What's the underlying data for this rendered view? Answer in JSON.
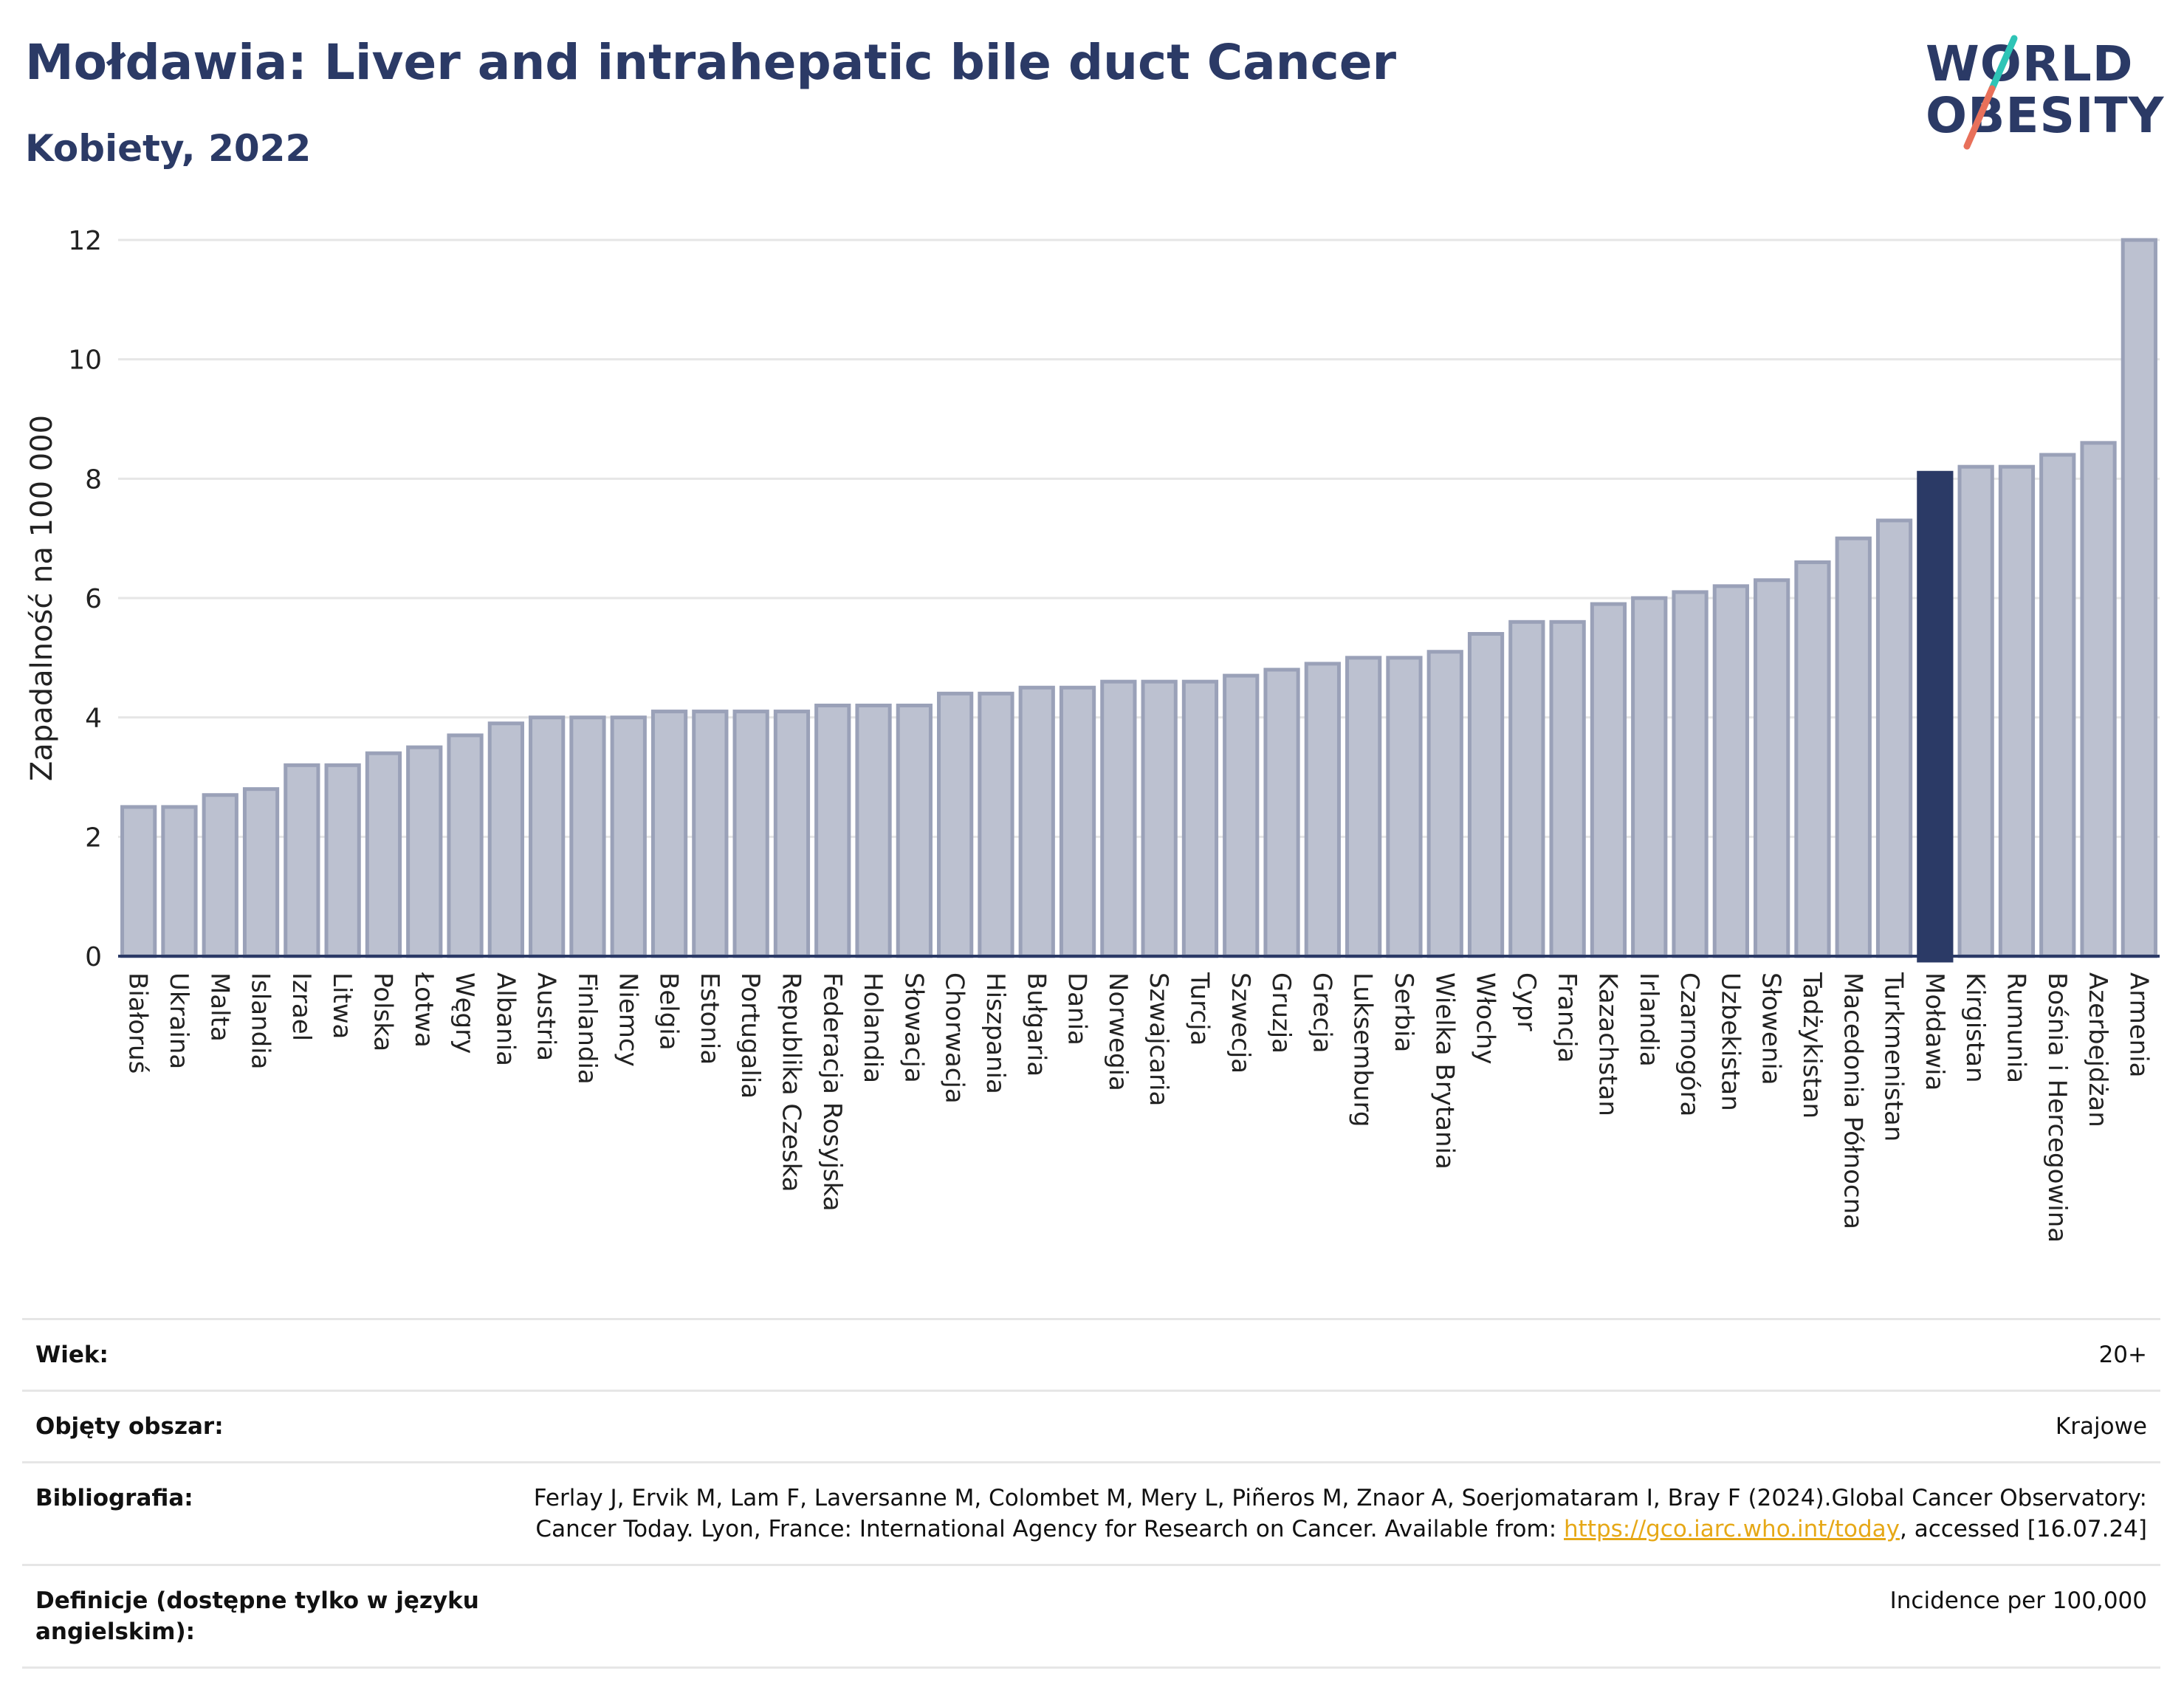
{
  "header": {
    "title": "Mołdawia: Liver and intrahepatic bile duct Cancer",
    "subtitle": "Kobiety, 2022"
  },
  "logo": {
    "line1": "WORLD",
    "line2": "OBESITY",
    "slash_colors": [
      "#2ec4b6",
      "#e8705a"
    ]
  },
  "colors": {
    "bar": "#bcc1d0",
    "bar_border": "#9aa1b8",
    "highlight": "#2b3a66",
    "title": "#2b3a66",
    "grid": "#e6e6e6",
    "link": "#e6a817"
  },
  "chart_data": {
    "type": "bar",
    "title": "Mołdawia: Liver and intrahepatic bile duct Cancer",
    "ylabel": "Zapadalność na 100 000",
    "ylim": [
      0,
      12
    ],
    "yticks": [
      0,
      2,
      4,
      6,
      8,
      10,
      12
    ],
    "highlight": "Mołdawia",
    "grid": true,
    "categories": [
      "Białoruś",
      "Ukraina",
      "Malta",
      "Islandia",
      "Izrael",
      "Litwa",
      "Polska",
      "Łotwa",
      "Węgry",
      "Albania",
      "Austria",
      "Finlandia",
      "Niemcy",
      "Belgia",
      "Estonia",
      "Portugalia",
      "Republika Czeska",
      "Federacja Rosyjska",
      "Holandia",
      "Słowacja",
      "Chorwacja",
      "Hiszpania",
      "Bułgaria",
      "Dania",
      "Norwegia",
      "Szwajcaria",
      "Turcja",
      "Szwecja",
      "Gruzja",
      "Grecja",
      "Luksemburg",
      "Serbia",
      "Wielka Brytania",
      "Włochy",
      "Cypr",
      "Francja",
      "Kazachstan",
      "Irlandia",
      "Czarnogóra",
      "Uzbekistan",
      "Słowenia",
      "Tadżykistan",
      "Macedonia Północna",
      "Turkmenistan",
      "Mołdawia",
      "Kirgistan",
      "Rumunia",
      "Bośnia i Hercegowina",
      "Azerbejdżan",
      "Armenia"
    ],
    "values": [
      2.5,
      2.5,
      2.7,
      2.8,
      3.2,
      3.2,
      3.4,
      3.5,
      3.7,
      3.9,
      4.0,
      4.0,
      4.0,
      4.1,
      4.1,
      4.1,
      4.1,
      4.2,
      4.2,
      4.2,
      4.4,
      4.4,
      4.5,
      4.5,
      4.6,
      4.6,
      4.6,
      4.7,
      4.8,
      4.9,
      5.0,
      5.0,
      5.1,
      5.4,
      5.6,
      5.6,
      5.9,
      6.0,
      6.1,
      6.2,
      6.3,
      6.6,
      7.0,
      7.3,
      8.1,
      8.2,
      8.2,
      8.4,
      8.6,
      12.0
    ]
  },
  "info": [
    {
      "key": "Wiek:",
      "value": "20+"
    },
    {
      "key": "Objęty obszar:",
      "value": "Krajowe"
    },
    {
      "key": "Bibliografia:",
      "value_before": "Ferlay J, Ervik M, Lam F, Laversanne M, Colombet M, Mery L, Piñeros M, Znaor A, Soerjomataram I, Bray F (2024).Global Cancer Observatory: Cancer Today. Lyon, France: International Agency for Research on Cancer. Available from: ",
      "link": "https://gco.iarc.who.int/today",
      "value_after": ", accessed [16.07.24]"
    },
    {
      "key": "Definicje (dostępne tylko w języku angielskim):",
      "value": "Incidence per 100,000"
    }
  ]
}
